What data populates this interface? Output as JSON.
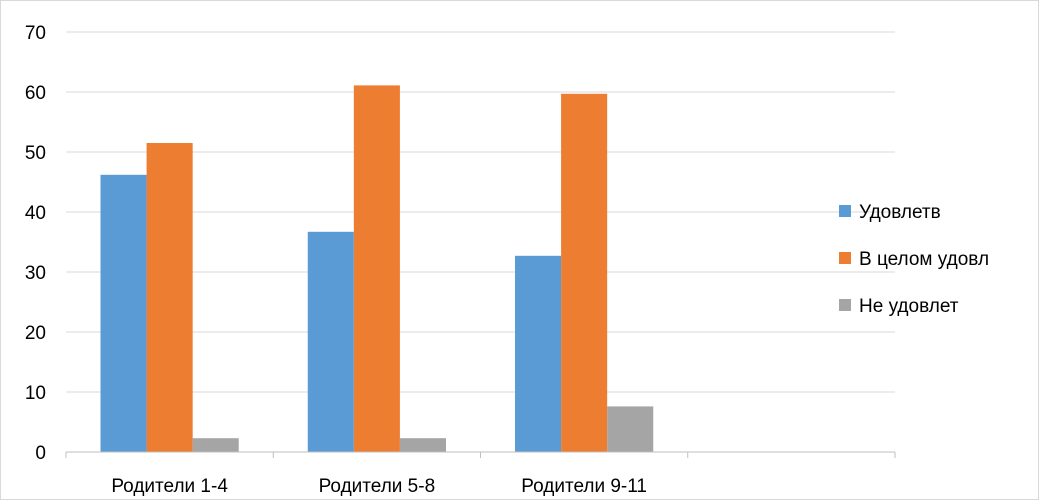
{
  "chart_data": {
    "type": "bar",
    "categories": [
      "Родители 1-4",
      "Родители 5-8",
      "Родители 9-11",
      ""
    ],
    "series": [
      {
        "name": "Удовлетв",
        "color": "#5b9bd5",
        "values": [
          46.2,
          36.7,
          32.7,
          null
        ]
      },
      {
        "name": "В целом удовл",
        "color": "#ed7d31",
        "values": [
          51.5,
          61.1,
          59.7,
          null
        ]
      },
      {
        "name": "Не удовлет",
        "color": "#a5a5a5",
        "values": [
          2.3,
          2.3,
          7.6,
          null
        ]
      }
    ],
    "ylim": [
      0,
      70
    ],
    "yticks": [
      0,
      10,
      20,
      30,
      40,
      50,
      60,
      70
    ],
    "grid": true,
    "legend": "right",
    "title": "",
    "xlabel": "",
    "ylabel": ""
  }
}
